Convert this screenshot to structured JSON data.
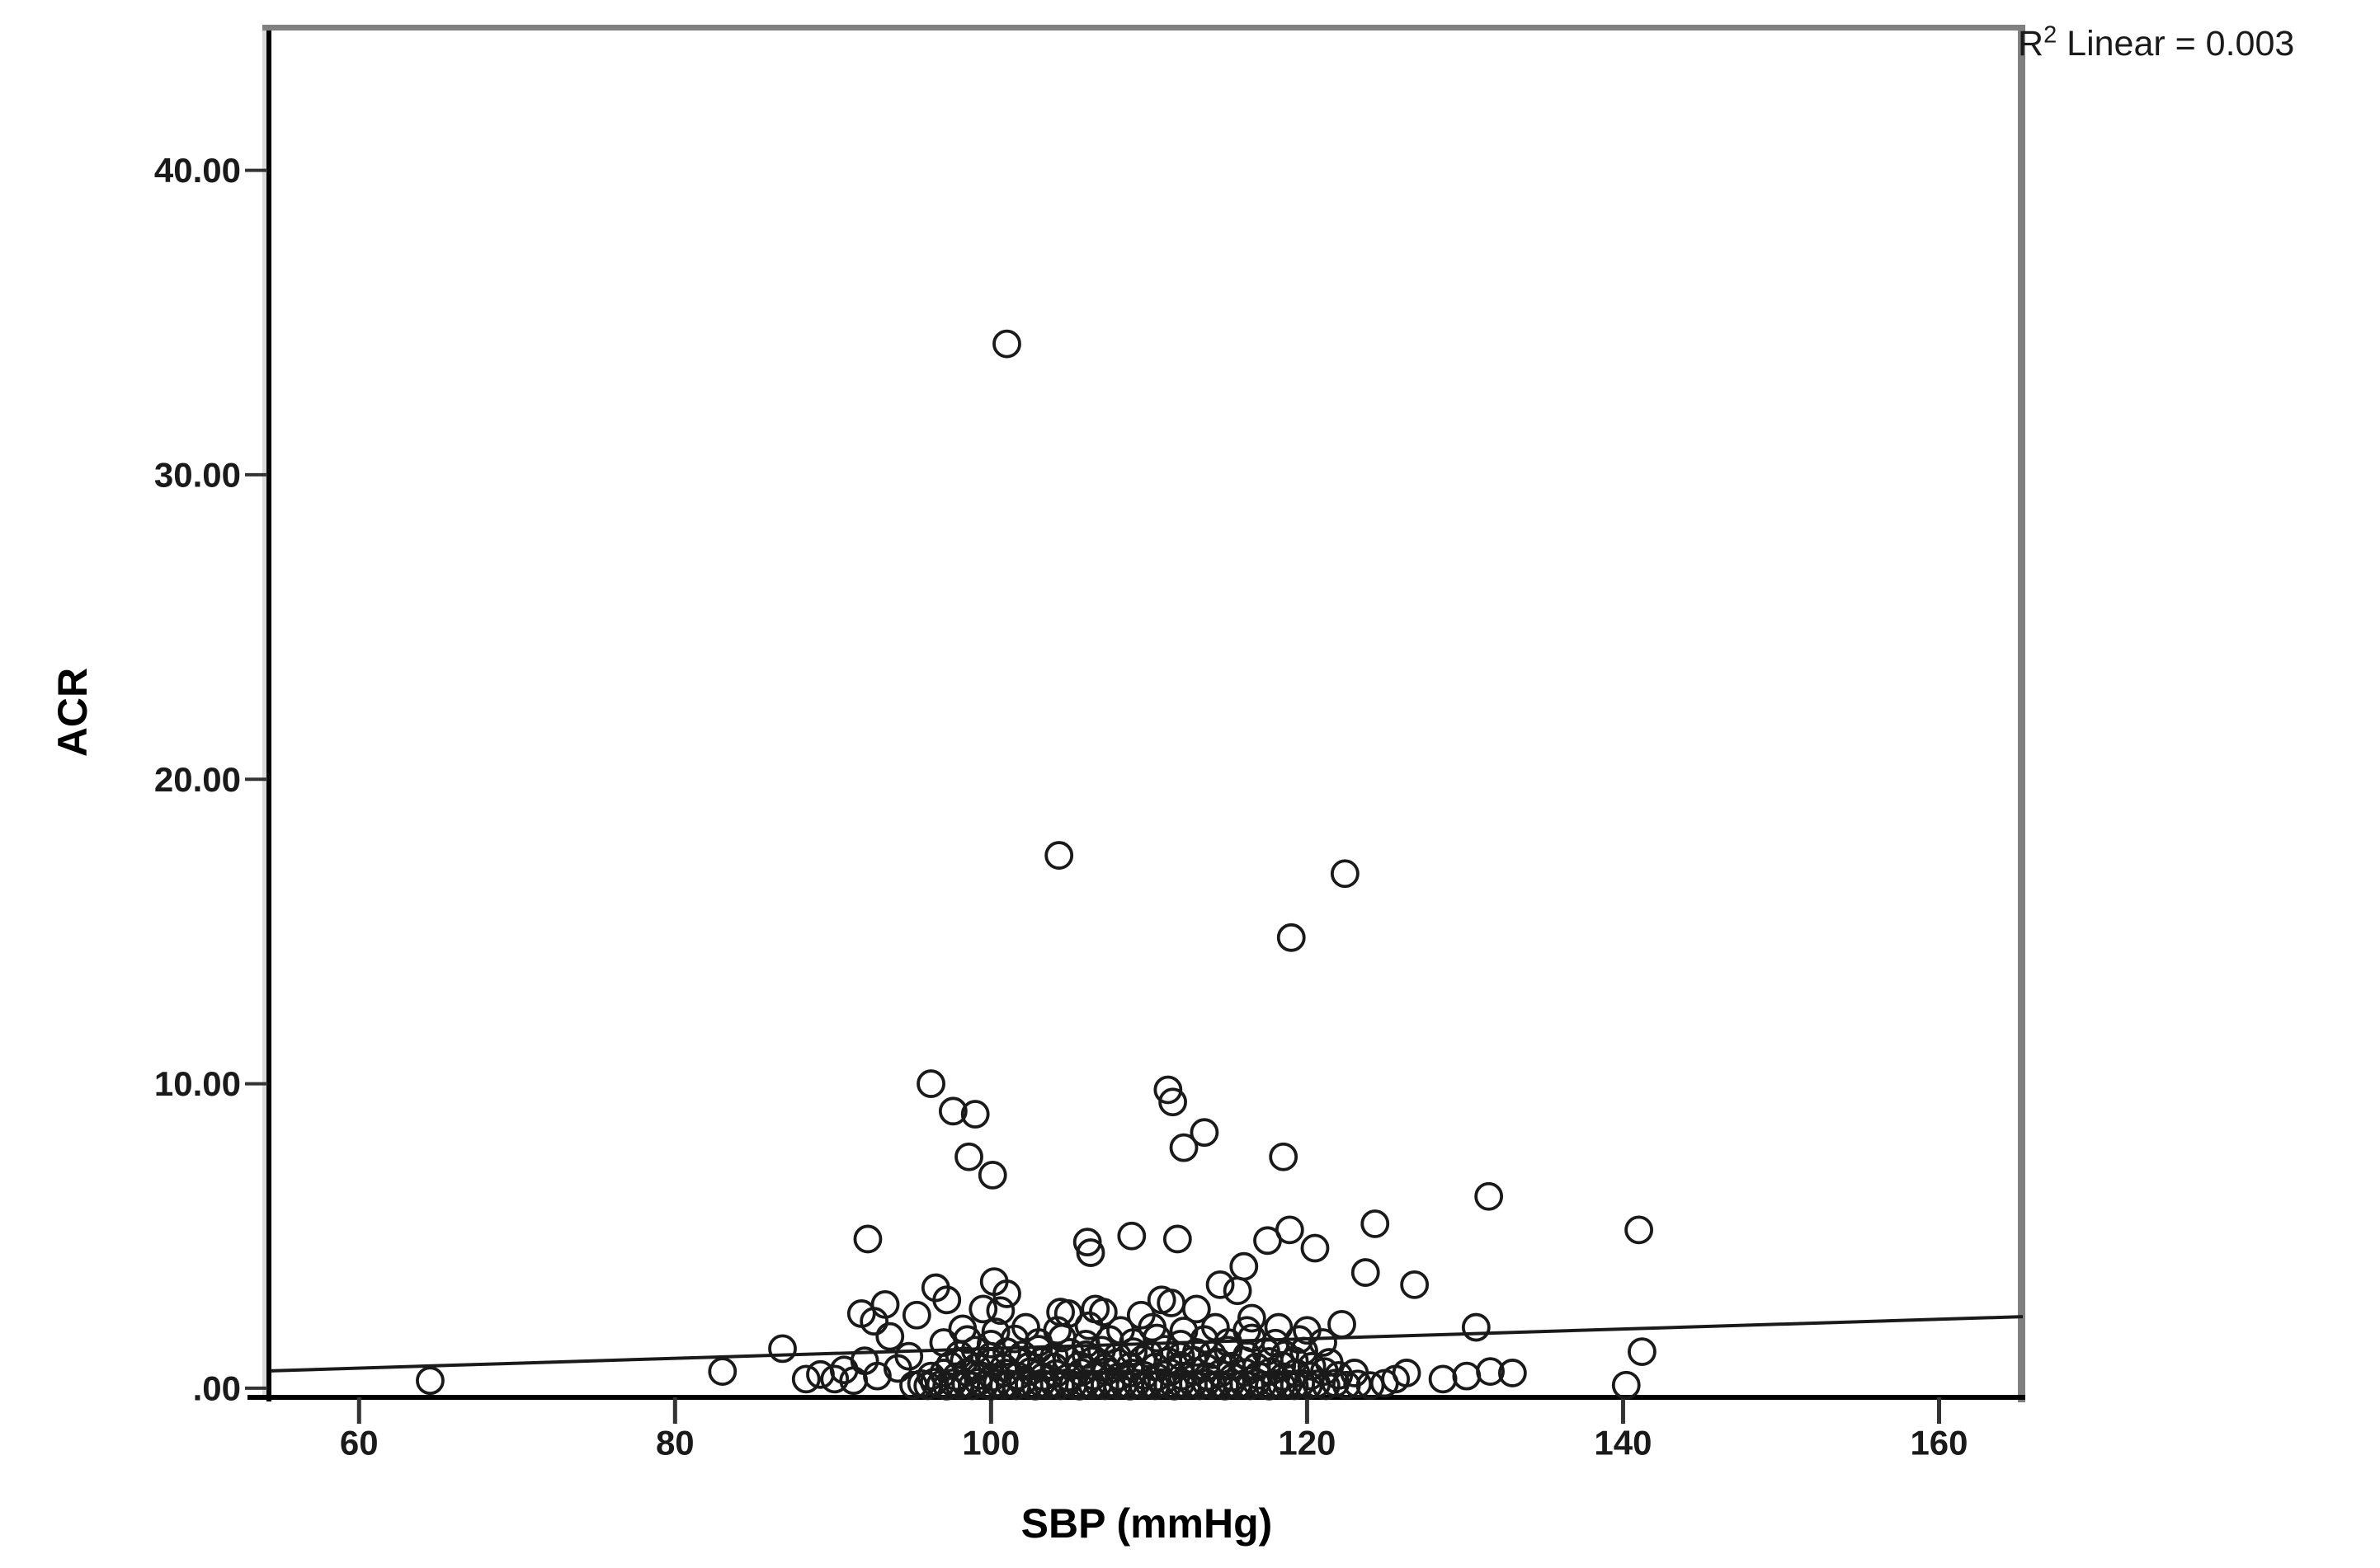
{
  "annotation": {
    "r2_base": "R",
    "r2_sup": "2",
    "r2_rest": " Linear = 0.003"
  },
  "chart_data": {
    "type": "scatter",
    "title": "",
    "xlabel": "SBP (mmHg)",
    "ylabel": "ACR",
    "xlim": [
      54.4,
      165.3
    ],
    "ylim": [
      -0.3,
      44.7
    ],
    "x_ticks": [
      60,
      80,
      100,
      120,
      140,
      160
    ],
    "x_tick_labels": [
      "60",
      "80",
      "100",
      "120",
      "140",
      "160"
    ],
    "y_ticks": [
      0,
      10,
      20,
      30,
      40
    ],
    "y_tick_labels": [
      ".00",
      "10.00",
      "20.00",
      "30.00",
      "40.00"
    ],
    "legend": "none",
    "grid": false,
    "r2_label": "R2 Linear = 0.003",
    "r2_value": 0.003,
    "regression_line": {
      "x": [
        54.4,
        165.3
      ],
      "y": [
        0.57,
        2.35
      ]
    },
    "marker": {
      "shape": "open-circle",
      "radius_px": 15.5,
      "stroke_px": 3.8
    },
    "points": [
      [
        101.0,
        34.3
      ],
      [
        104.3,
        17.5
      ],
      [
        122.4,
        16.9
      ],
      [
        119.0,
        14.8
      ],
      [
        96.2,
        10.0
      ],
      [
        111.2,
        9.8
      ],
      [
        111.5,
        9.4
      ],
      [
        97.6,
        9.1
      ],
      [
        99.0,
        9.0
      ],
      [
        113.5,
        8.4
      ],
      [
        112.2,
        7.9
      ],
      [
        118.5,
        7.6
      ],
      [
        98.6,
        7.6
      ],
      [
        100.1,
        7.0
      ],
      [
        131.5,
        6.3
      ],
      [
        141.0,
        5.2
      ],
      [
        124.3,
        5.4
      ],
      [
        118.9,
        5.2
      ],
      [
        108.9,
        5.0
      ],
      [
        92.2,
        4.9
      ],
      [
        111.8,
        4.9
      ],
      [
        117.5,
        4.85
      ],
      [
        106.1,
        4.8
      ],
      [
        120.5,
        4.6
      ],
      [
        106.3,
        4.45
      ],
      [
        116.0,
        4.0
      ],
      [
        123.7,
        3.8
      ],
      [
        114.5,
        3.4
      ],
      [
        126.8,
        3.4
      ],
      [
        100.2,
        3.5
      ],
      [
        96.5,
        3.3
      ],
      [
        115.6,
        3.2
      ],
      [
        101.0,
        3.1
      ],
      [
        97.2,
        2.9
      ],
      [
        93.3,
        2.75
      ],
      [
        99.5,
        2.6
      ],
      [
        100.6,
        2.55
      ],
      [
        104.4,
        2.5
      ],
      [
        104.9,
        2.45
      ],
      [
        91.8,
        2.45
      ],
      [
        92.6,
        2.2
      ],
      [
        106.6,
        2.6
      ],
      [
        107.1,
        2.5
      ],
      [
        109.5,
        2.4
      ],
      [
        110.8,
        2.9
      ],
      [
        111.4,
        2.8
      ],
      [
        113.0,
        2.6
      ],
      [
        116.5,
        2.3
      ],
      [
        122.2,
        2.1
      ],
      [
        130.7,
        2.0
      ],
      [
        141.2,
        1.2
      ],
      [
        95.3,
        2.4
      ],
      [
        93.6,
        1.7
      ],
      [
        86.8,
        1.3
      ],
      [
        64.5,
        0.25
      ],
      [
        83.0,
        0.55
      ],
      [
        88.3,
        0.3
      ],
      [
        89.2,
        0.45
      ],
      [
        90.1,
        0.3
      ],
      [
        90.7,
        0.6
      ],
      [
        91.3,
        0.25
      ],
      [
        92.0,
        0.9
      ],
      [
        92.8,
        0.4
      ],
      [
        94.1,
        0.65
      ],
      [
        94.8,
        1.05
      ],
      [
        125.6,
        0.3
      ],
      [
        126.3,
        0.5
      ],
      [
        128.6,
        0.3
      ],
      [
        130.1,
        0.4
      ],
      [
        131.6,
        0.55
      ],
      [
        133.0,
        0.5
      ],
      [
        140.2,
        0.1
      ],
      [
        95.1,
        0.1
      ],
      [
        95.6,
        0.15
      ],
      [
        96.0,
        0.08
      ],
      [
        96.4,
        0.2
      ],
      [
        96.8,
        0.12
      ],
      [
        97.2,
        0.07
      ],
      [
        97.6,
        0.18
      ],
      [
        98.0,
        0.1
      ],
      [
        98.4,
        0.15
      ],
      [
        98.8,
        0.08
      ],
      [
        99.2,
        0.2
      ],
      [
        99.6,
        0.12
      ],
      [
        100.0,
        0.07
      ],
      [
        100.4,
        0.17
      ],
      [
        100.8,
        0.1
      ],
      [
        101.2,
        0.14
      ],
      [
        101.6,
        0.08
      ],
      [
        102.0,
        0.19
      ],
      [
        102.4,
        0.11
      ],
      [
        102.8,
        0.07
      ],
      [
        103.2,
        0.16
      ],
      [
        103.6,
        0.1
      ],
      [
        104.0,
        0.14
      ],
      [
        104.4,
        0.08
      ],
      [
        104.8,
        0.18
      ],
      [
        105.2,
        0.11
      ],
      [
        105.6,
        0.07
      ],
      [
        106.0,
        0.15
      ],
      [
        106.4,
        0.1
      ],
      [
        106.8,
        0.13
      ],
      [
        107.2,
        0.08
      ],
      [
        107.6,
        0.17
      ],
      [
        108.0,
        0.1
      ],
      [
        108.4,
        0.14
      ],
      [
        108.8,
        0.07
      ],
      [
        109.2,
        0.16
      ],
      [
        109.6,
        0.1
      ],
      [
        110.0,
        0.13
      ],
      [
        110.4,
        0.08
      ],
      [
        110.8,
        0.18
      ],
      [
        111.2,
        0.11
      ],
      [
        111.6,
        0.07
      ],
      [
        112.0,
        0.15
      ],
      [
        112.4,
        0.1
      ],
      [
        112.8,
        0.13
      ],
      [
        113.2,
        0.08
      ],
      [
        113.6,
        0.17
      ],
      [
        114.0,
        0.1
      ],
      [
        114.4,
        0.13
      ],
      [
        114.8,
        0.07
      ],
      [
        115.2,
        0.16
      ],
      [
        115.6,
        0.1
      ],
      [
        116.0,
        0.14
      ],
      [
        116.4,
        0.08
      ],
      [
        116.8,
        0.18
      ],
      [
        117.2,
        0.11
      ],
      [
        117.6,
        0.07
      ],
      [
        118.0,
        0.15
      ],
      [
        118.4,
        0.1
      ],
      [
        118.8,
        0.13
      ],
      [
        119.2,
        0.08
      ],
      [
        119.6,
        0.16
      ],
      [
        120.1,
        0.1
      ],
      [
        120.6,
        0.14
      ],
      [
        121.2,
        0.08
      ],
      [
        121.8,
        0.17
      ],
      [
        122.5,
        0.1
      ],
      [
        123.2,
        0.14
      ],
      [
        124.0,
        0.09
      ],
      [
        124.9,
        0.16
      ],
      [
        96.2,
        0.4
      ],
      [
        97.0,
        0.5
      ],
      [
        97.8,
        0.38
      ],
      [
        98.5,
        0.52
      ],
      [
        99.3,
        0.42
      ],
      [
        100.1,
        0.36
      ],
      [
        100.9,
        0.5
      ],
      [
        101.7,
        0.4
      ],
      [
        102.5,
        0.55
      ],
      [
        103.3,
        0.38
      ],
      [
        104.1,
        0.48
      ],
      [
        104.9,
        0.36
      ],
      [
        105.7,
        0.52
      ],
      [
        106.5,
        0.4
      ],
      [
        107.3,
        0.55
      ],
      [
        108.1,
        0.38
      ],
      [
        108.9,
        0.5
      ],
      [
        109.7,
        0.42
      ],
      [
        110.5,
        0.36
      ],
      [
        111.3,
        0.52
      ],
      [
        112.1,
        0.4
      ],
      [
        112.9,
        0.55
      ],
      [
        113.7,
        0.38
      ],
      [
        114.5,
        0.48
      ],
      [
        115.3,
        0.36
      ],
      [
        116.1,
        0.52
      ],
      [
        116.9,
        0.42
      ],
      [
        117.7,
        0.55
      ],
      [
        118.5,
        0.38
      ],
      [
        119.3,
        0.5
      ],
      [
        120.2,
        0.4
      ],
      [
        121.1,
        0.55
      ],
      [
        122.0,
        0.42
      ],
      [
        123.0,
        0.5
      ],
      [
        97.4,
        0.75
      ],
      [
        98.3,
        0.9
      ],
      [
        99.1,
        0.7
      ],
      [
        100.0,
        0.85
      ],
      [
        100.8,
        0.68
      ],
      [
        101.6,
        0.92
      ],
      [
        102.4,
        0.72
      ],
      [
        103.2,
        0.88
      ],
      [
        104.0,
        0.7
      ],
      [
        104.8,
        0.95
      ],
      [
        105.6,
        0.75
      ],
      [
        106.4,
        0.9
      ],
      [
        107.2,
        0.68
      ],
      [
        108.0,
        0.85
      ],
      [
        108.8,
        0.72
      ],
      [
        109.6,
        0.95
      ],
      [
        110.4,
        0.7
      ],
      [
        111.2,
        0.88
      ],
      [
        112.0,
        0.75
      ],
      [
        112.8,
        0.92
      ],
      [
        113.6,
        0.68
      ],
      [
        114.4,
        0.85
      ],
      [
        115.2,
        0.72
      ],
      [
        116.0,
        0.9
      ],
      [
        116.8,
        0.7
      ],
      [
        117.6,
        0.88
      ],
      [
        118.4,
        0.75
      ],
      [
        119.2,
        0.9
      ],
      [
        120.3,
        0.72
      ],
      [
        121.4,
        0.85
      ],
      [
        98.0,
        1.1
      ],
      [
        99.0,
        1.25
      ],
      [
        100.0,
        1.05
      ],
      [
        101.0,
        1.2
      ],
      [
        102.0,
        1.1
      ],
      [
        103.0,
        1.28
      ],
      [
        104.0,
        1.05
      ],
      [
        105.0,
        1.18
      ],
      [
        106.0,
        1.1
      ],
      [
        107.0,
        1.25
      ],
      [
        108.0,
        1.05
      ],
      [
        109.0,
        1.2
      ],
      [
        110.0,
        1.12
      ],
      [
        111.0,
        1.28
      ],
      [
        112.0,
        1.05
      ],
      [
        113.0,
        1.18
      ],
      [
        114.0,
        1.1
      ],
      [
        115.0,
        1.25
      ],
      [
        116.2,
        1.08
      ],
      [
        117.4,
        1.2
      ],
      [
        118.6,
        1.1
      ],
      [
        119.8,
        1.22
      ],
      [
        97.0,
        1.5
      ],
      [
        98.5,
        1.6
      ],
      [
        100.0,
        1.45
      ],
      [
        101.5,
        1.62
      ],
      [
        103.0,
        1.5
      ],
      [
        104.5,
        1.65
      ],
      [
        106.0,
        1.45
      ],
      [
        107.5,
        1.6
      ],
      [
        109.0,
        1.5
      ],
      [
        110.5,
        1.65
      ],
      [
        112.0,
        1.45
      ],
      [
        113.5,
        1.6
      ],
      [
        115.0,
        1.5
      ],
      [
        116.5,
        1.65
      ],
      [
        118.0,
        1.48
      ],
      [
        119.5,
        1.6
      ],
      [
        121.0,
        1.5
      ],
      [
        98.2,
        1.95
      ],
      [
        100.3,
        1.85
      ],
      [
        102.2,
        2.0
      ],
      [
        104.2,
        1.9
      ],
      [
        106.2,
        2.05
      ],
      [
        108.2,
        1.9
      ],
      [
        110.2,
        2.0
      ],
      [
        112.2,
        1.88
      ],
      [
        114.2,
        2.0
      ],
      [
        116.2,
        1.9
      ],
      [
        118.2,
        2.0
      ],
      [
        120.0,
        1.9
      ]
    ]
  },
  "style": {
    "frame_gray": "#808080",
    "frame_black": "#000000",
    "frame_light": "#d9d9d9",
    "tick_color": "#333333",
    "line_color": "#1a1a1a",
    "marker_stroke": "#1a1a1a",
    "background": "#ffffff"
  }
}
